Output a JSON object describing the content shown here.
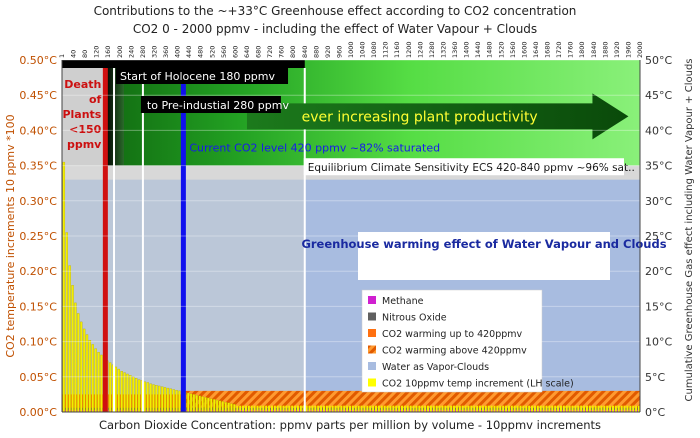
{
  "chart_data": {
    "type": "bar",
    "title": "Contributions to the ~+33°C Greenhouse effect according to CO2 concentration",
    "subtitle": "CO2 0 - 2000 ppmv -  including the effect of Water Vapour + Clouds",
    "xlabel": "Carbon Dioxide Concentration:  ppmv  parts per million by volume - 10ppmv increments",
    "ylabel_left": "CO2 temperature increments  10 ppmv *100",
    "ylabel_right": "Cumulative Greenhouse Gas  effect including Water Vapour + Clouds",
    "xlim": [
      0,
      2000
    ],
    "ylim_left": [
      0,
      0.5
    ],
    "ylim_right": [
      0,
      50
    ],
    "x_ticks": [
      "1",
      "40",
      "80",
      "120",
      "160",
      "200",
      "240",
      "280",
      "320",
      "360",
      "400",
      "440",
      "480",
      "520",
      "560",
      "600",
      "640",
      "680",
      "720",
      "760",
      "800",
      "840",
      "880",
      "920",
      "960",
      "1000",
      "1040",
      "1080",
      "1120",
      "1160",
      "1200",
      "1240",
      "1280",
      "1320",
      "1360",
      "1400",
      "1440",
      "1480",
      "1520",
      "1560",
      "1600",
      "1640",
      "1680",
      "1720",
      "1760",
      "1800",
      "1840",
      "1880",
      "1920",
      "1960",
      "2000"
    ],
    "y_ticks_left": [
      "0.00°C",
      "0.05°C",
      "0.10°C",
      "0.15°C",
      "0.20°C",
      "0.25°C",
      "0.30°C",
      "0.35°C",
      "0.40°C",
      "0.45°C",
      "0.50°C"
    ],
    "y_ticks_right": [
      "0°C",
      "5°C",
      "10°C",
      "15°C",
      "20°C",
      "25°C",
      "30°C",
      "35°C",
      "40°C",
      "45°C",
      "50°C"
    ],
    "increment_bars_ppmv_start": 10,
    "increment_bars_ppmv_step": 10,
    "increment_values": [
      0.355,
      0.255,
      0.208,
      0.18,
      0.155,
      0.14,
      0.128,
      0.118,
      0.11,
      0.102,
      0.096,
      0.09,
      0.085,
      0.081,
      0.077,
      0.073,
      0.07,
      0.067,
      0.064,
      0.061,
      0.058,
      0.056,
      0.054,
      0.052,
      0.05,
      0.048,
      0.046,
      0.045,
      0.043,
      0.042,
      0.04,
      0.039,
      0.038,
      0.037,
      0.036,
      0.035,
      0.034,
      0.033,
      0.032,
      0.031,
      0.03,
      0.029,
      0.028,
      0.027,
      0.026,
      0.025,
      0.024,
      0.023,
      0.022,
      0.021,
      0.02,
      0.019,
      0.018,
      0.017,
      0.016,
      0.015,
      0.014,
      0.013,
      0.012,
      0.011
    ],
    "increment_tail_value": 0.009,
    "water_vapour_cloud_level": 33,
    "co2_to_420_level": 2.5,
    "co2_above_420_level": 3.0,
    "methane_level": 0.3,
    "nitrous_oxide_level": 0.6,
    "vertical_markers": [
      {
        "ppmv": 150,
        "label": "Death of Plants <150 ppmv",
        "color": "#d01010"
      },
      {
        "ppmv": 180,
        "label": "Start of Holocene 180 ppmv",
        "color": "#ffffff"
      },
      {
        "ppmv": 280,
        "label": "to Pre-industial 280 ppmv",
        "color": "#ffffff"
      },
      {
        "ppmv": 420,
        "label": "Current CO2 level 420 ppmv ~82% saturated",
        "color": "#1010ee"
      },
      {
        "ppmv": 840,
        "label": "Equilibrium Climate Sensitivity ECS 420-840 ppmv ~96% sat..",
        "color": "#ffffff"
      }
    ],
    "productivity_label": "ever increasing plant productivity",
    "vapour_box_title": "Greenhouse warming effect of Water Vapour and Clouds",
    "legend_placement": "right-center",
    "legend": [
      {
        "label": "Methane",
        "color": "#d020d0",
        "pattern": "solid"
      },
      {
        "label": "Nitrous Oxide",
        "color": "#606060",
        "pattern": "solid"
      },
      {
        "label": "CO2 warming up to 420ppmv",
        "color": "#ff7010",
        "pattern": "solid"
      },
      {
        "label": "CO2 warming above 420ppmv",
        "color": "#ff7010",
        "pattern": "hatch"
      },
      {
        "label": "Water as Vapor-Clouds",
        "color": "#a8bce0",
        "pattern": "solid"
      },
      {
        "label": "CO2 10ppmv temp increment (LH scale)",
        "color": "#ffff00",
        "pattern": "solid"
      }
    ],
    "colors": {
      "axis_left_text": "#c05000",
      "vapour_fill": "#a8bce0",
      "green_light": "#66ee44",
      "green_dark": "#1a7a1a",
      "increment_bar": "#f4f000"
    }
  }
}
